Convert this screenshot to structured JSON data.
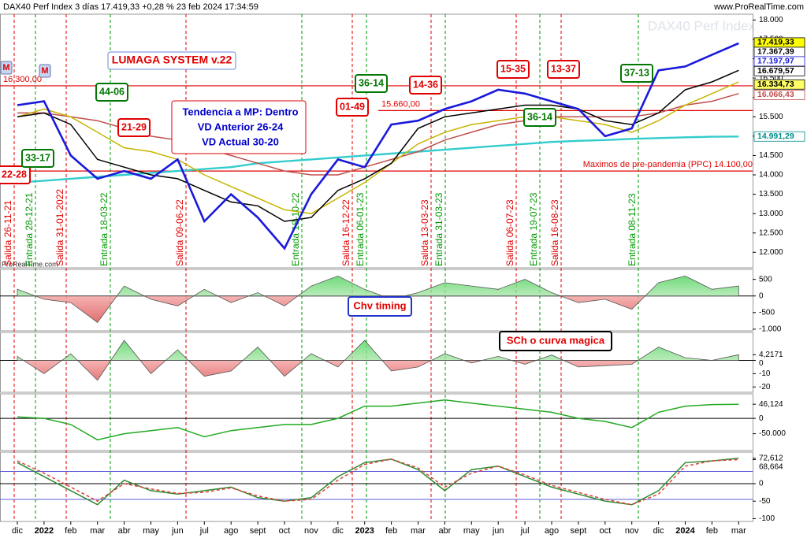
{
  "chart_data": [
    {
      "type": "line",
      "title": "DAX40 Perf Index 3 días 17.419,33 +0,28 % 23 feb 2024 17:34:59",
      "source": "www.ProRealTime.com",
      "watermark": "DAX40 Perf Index",
      "credit": "ProRealTime.com",
      "markers": [
        "M",
        "M"
      ],
      "categories": [
        "dic",
        "2022",
        "feb",
        "mar",
        "abr",
        "may",
        "jun",
        "jul",
        "ago",
        "sept",
        "oct",
        "nov",
        "dic",
        "2023",
        "feb",
        "mar",
        "abr",
        "may",
        "jun",
        "jul",
        "ago",
        "sept",
        "oct",
        "nov",
        "dic",
        "2024",
        "feb",
        "mar"
      ],
      "series": [
        {
          "color": "#33cccc",
          "values": [
            13800,
            13850,
            13900,
            13950,
            14000,
            14050,
            14100,
            14150,
            14200,
            14300,
            14350,
            14400,
            14450,
            14500,
            14550,
            14600,
            14650,
            14700,
            14750,
            14800,
            14850,
            14880,
            14900,
            14930,
            14950,
            14970,
            14985,
            14991
          ]
        },
        {
          "color": "#c0504d",
          "values": [
            15600,
            15600,
            15500,
            15400,
            15200,
            15000,
            14900,
            14700,
            14500,
            14300,
            14100,
            14000,
            14000,
            14200,
            14400,
            14600,
            14900,
            15100,
            15300,
            15400,
            15500,
            15500,
            15500,
            15500,
            15600,
            15800,
            15900,
            16100
          ]
        },
        {
          "color": "#c8b400",
          "values": [
            15500,
            15700,
            15500,
            15100,
            14700,
            14600,
            14400,
            14000,
            13700,
            13400,
            13100,
            13000,
            13400,
            13800,
            14300,
            14800,
            15100,
            15300,
            15400,
            15500,
            15500,
            15400,
            15300,
            15100,
            15400,
            15800,
            16100,
            16400
          ]
        },
        {
          "color": "#000000",
          "values": [
            15500,
            15600,
            15300,
            14400,
            14200,
            14000,
            13900,
            13600,
            13300,
            13200,
            12800,
            12900,
            13600,
            13900,
            14300,
            15200,
            15500,
            15600,
            15700,
            15800,
            15800,
            15700,
            15400,
            15300,
            15600,
            16200,
            16400,
            16700
          ]
        },
        {
          "color": "#1a1adc",
          "values": [
            15800,
            15900,
            14500,
            13900,
            14100,
            13900,
            14400,
            12800,
            13500,
            12900,
            12100,
            13500,
            14400,
            14200,
            15300,
            15400,
            15700,
            15900,
            16200,
            16100,
            15900,
            15700,
            15000,
            15200,
            16700,
            16800,
            17100,
            17400
          ]
        }
      ],
      "ylim": [
        11600,
        18150
      ],
      "yticks": [
        {
          "value": 18000,
          "label": "18.000"
        },
        {
          "value": 17500,
          "label": "17.500"
        },
        {
          "value": 17000,
          "label": "17.000"
        },
        {
          "value": 16500,
          "label": "16.500"
        },
        {
          "value": 16000,
          "label": "16.000"
        },
        {
          "value": 15500,
          "label": "15.500"
        },
        {
          "value": 15000,
          "label": "15.000"
        },
        {
          "value": 14500,
          "label": "14.500"
        },
        {
          "value": 14000,
          "label": "14.000"
        },
        {
          "value": 13500,
          "label": "13.500"
        },
        {
          "value": 13000,
          "label": "13.000"
        },
        {
          "value": 12500,
          "label": "12.500"
        },
        {
          "value": 12000,
          "label": "12.000"
        }
      ],
      "hlines": [
        {
          "value": 16300,
          "label": "16.300,00"
        },
        {
          "value": 15660,
          "label": "15.660,00"
        },
        {
          "value": 14100,
          "label": "Maximos de pre-pandemia (PPC) 14.100,00"
        }
      ],
      "price_tags": [
        {
          "value": 17419.33,
          "label": "17.419,33",
          "color": "#000000",
          "background": "#ffff00"
        },
        {
          "value": 17367.39,
          "label": "17.367,39",
          "color": "#000000",
          "background": "#ffffff"
        },
        {
          "value": 17197.97,
          "label": "17.197,97",
          "color": "#1a1adc",
          "background": "#ffffff"
        },
        {
          "value": 16679.57,
          "label": "16.679,57",
          "color": "#000000",
          "background": "#ffffff"
        },
        {
          "value": 16334.73,
          "label": "16.334,73",
          "color": "#000000",
          "background": "#ffff66"
        },
        {
          "value": 16066.43,
          "label": "16.066,43",
          "color": "#c0504d",
          "background": "#ffffff"
        },
        {
          "value": 14991.29,
          "label": "14.991,29",
          "color": "#008b8b",
          "background": "#ffffff"
        }
      ],
      "annotations": [
        {
          "text": "LUMAGA SYSTEM v.22",
          "color": "#e00000"
        },
        {
          "text": "Tendencia a MP: Dentro",
          "color": "#0000cc"
        },
        {
          "text": "VD Anterior 26-24",
          "color": "#0000cc"
        },
        {
          "text": "VD Actual 30-20",
          "color": "#0000cc"
        },
        {
          "text": "22-28",
          "color": "#e00000"
        },
        {
          "text": "33-17",
          "color": "#007700"
        },
        {
          "text": "44-06",
          "color": "#007700"
        },
        {
          "text": "21-29",
          "color": "#e00000"
        },
        {
          "text": "36-14",
          "color": "#007700"
        },
        {
          "text": "01-49",
          "color": "#e00000"
        },
        {
          "text": "14-36",
          "color": "#e00000"
        },
        {
          "text": "15-35",
          "color": "#e00000"
        },
        {
          "text": "13-37",
          "color": "#e00000"
        },
        {
          "text": "36-14",
          "color": "#007700"
        },
        {
          "text": "37-13",
          "color": "#007700"
        }
      ],
      "signals": [
        {
          "text": "Salida 26-11-21",
          "color": "#e00000"
        },
        {
          "text": "Entrada 28-12-21",
          "color": "#009900"
        },
        {
          "text": "Salida 31-01-2022",
          "color": "#e00000"
        },
        {
          "text": "Entrada 18-03-22",
          "color": "#009900"
        },
        {
          "text": "Salida 09-06-22",
          "color": "#e00000"
        },
        {
          "text": "Entrada 18-10-22",
          "color": "#009900"
        },
        {
          "text": "Salida 16-12-22",
          "color": "#e00000"
        },
        {
          "text": "Entrada 06-01-23",
          "color": "#009900"
        },
        {
          "text": "Salida 13-03-23",
          "color": "#e00000"
        },
        {
          "text": "Entrada 31-03-23",
          "color": "#009900"
        },
        {
          "text": "Salida 06-07-23",
          "color": "#e00000"
        },
        {
          "text": "Entrada 19-07-23",
          "color": "#009900"
        },
        {
          "text": "Salida 16-08-23",
          "color": "#e00000"
        },
        {
          "text": "Entrada 08-11-23",
          "color": "#009900"
        }
      ]
    },
    {
      "type": "area",
      "title": "Chv timing",
      "values": [
        200,
        -100,
        -200,
        -800,
        300,
        -100,
        -300,
        200,
        -200,
        100,
        -300,
        300,
        600,
        200,
        -100,
        100,
        400,
        300,
        200,
        500,
        100,
        -200,
        -100,
        -400,
        400,
        600,
        200,
        300
      ],
      "ylim": [
        -1050,
        800
      ],
      "yticks": [
        500,
        0,
        -500,
        {
          "value": -1000,
          "label": "-1.000"
        }
      ]
    },
    {
      "type": "area",
      "title": "SCh o curva magica",
      "values": [
        3,
        -10,
        5,
        -15,
        15,
        -10,
        8,
        -12,
        -8,
        10,
        -12,
        5,
        -5,
        15,
        -8,
        -5,
        5,
        -2,
        3,
        -3,
        4,
        -5,
        -4,
        -3,
        10,
        2,
        0,
        4.2171
      ],
      "ylim": [
        -24,
        21
      ],
      "yticks": [
        {
          "value": 4.2171,
          "label": "4,2171"
        },
        0,
        -10,
        -20
      ]
    },
    {
      "type": "line",
      "values": [
        5000,
        0,
        -20000,
        -70000,
        -50000,
        -40000,
        -30000,
        -60000,
        -40000,
        -30000,
        -20000,
        -20000,
        0,
        40000,
        40000,
        50000,
        60000,
        50000,
        40000,
        30000,
        20000,
        0,
        -10000,
        -30000,
        20000,
        40000,
        45000,
        46124
      ],
      "ylim": [
        -105000,
        80000
      ],
      "yticks": [
        {
          "value": 46124,
          "label": "46,124"
        },
        0,
        {
          "value": -50000,
          "label": "-50.000"
        }
      ]
    },
    {
      "type": "line",
      "series": [
        {
          "color": "#2e8b2e",
          "values": [
            60,
            20,
            -20,
            -60,
            10,
            -20,
            -30,
            -20,
            -10,
            -40,
            -50,
            -40,
            20,
            60,
            70,
            40,
            -20,
            40,
            50,
            20,
            -10,
            -30,
            -50,
            -60,
            -20,
            60,
            65,
            72.612
          ]
        },
        {
          "color": "#e04040",
          "values": [
            65,
            30,
            -10,
            -50,
            0,
            -15,
            -28,
            -25,
            -12,
            -35,
            -50,
            -45,
            10,
            55,
            70,
            45,
            -10,
            30,
            50,
            25,
            -5,
            -25,
            -45,
            -60,
            -30,
            50,
            65,
            68.664
          ]
        }
      ],
      "hlines": [
        {
          "value": 35
        },
        {
          "value": -45
        }
      ],
      "ylim": [
        -108,
        90
      ],
      "yticks": [
        {
          "value": 72.612,
          "label": "72,612"
        },
        {
          "value": 68.664,
          "label": "68,664"
        },
        0,
        -50,
        -100
      ]
    }
  ]
}
